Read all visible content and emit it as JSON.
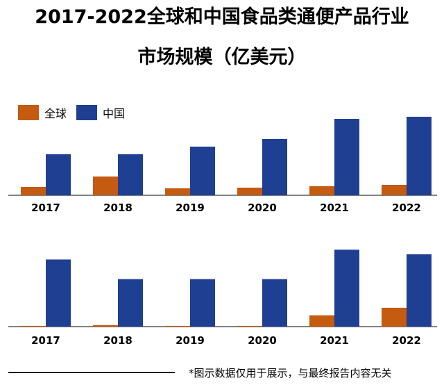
{
  "title_line1": "2017-2022全球和中国食品类通便产品行业",
  "title_line2": "市场规模（亿美元）",
  "footnote": "*图示数据仅用于展示，与最终报告内容无关",
  "colors": {
    "global": "#C55A11",
    "china": "#1F3F93"
  },
  "chart_data": [
    {
      "type": "bar",
      "categories": [
        "2017",
        "2018",
        "2019",
        "2020",
        "2021",
        "2022"
      ],
      "legend_position": "top-left",
      "series": [
        {
          "name": "全球",
          "values": [
            12,
            27,
            10,
            11,
            13,
            15
          ]
        },
        {
          "name": "中国",
          "values": [
            59,
            59,
            70,
            81,
            110,
            113
          ]
        }
      ]
    },
    {
      "type": "bar",
      "categories": [
        "2017",
        "2018",
        "2019",
        "2020",
        "2021",
        "2022"
      ],
      "series": [
        {
          "name": "全球",
          "values": [
            1,
            2,
            1,
            1,
            15,
            25
          ]
        },
        {
          "name": "中国",
          "values": [
            89,
            63,
            63,
            63,
            102,
            96
          ]
        }
      ]
    }
  ]
}
